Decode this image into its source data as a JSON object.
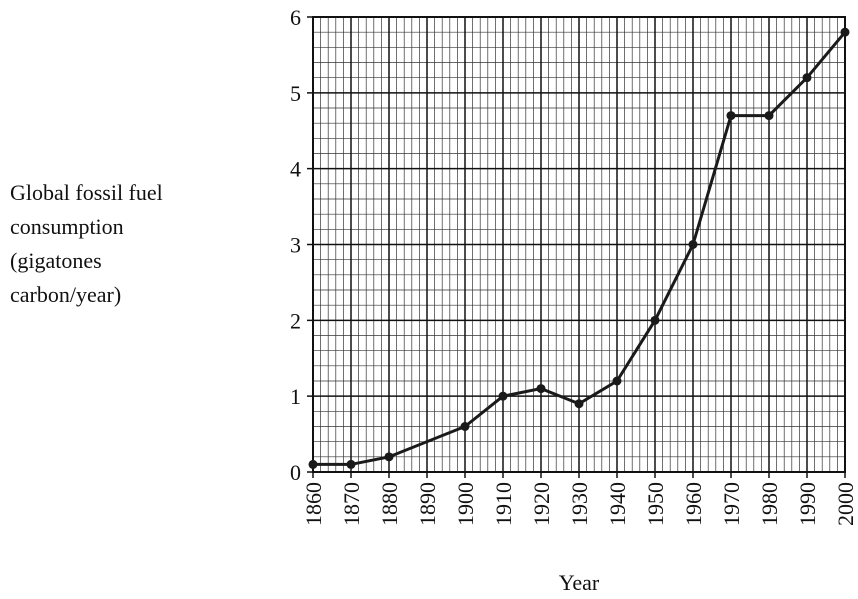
{
  "chart_data": {
    "type": "line",
    "x_label": "Year",
    "y_label": [
      "Global fossil fuel",
      "consumption",
      "(gigatones",
      "carbon/year)"
    ],
    "x": [
      1860,
      1870,
      1880,
      1900,
      1910,
      1920,
      1930,
      1940,
      1950,
      1960,
      1970,
      1980,
      1990,
      2000
    ],
    "series": [
      {
        "color": "#1a1a1a",
        "values": [
          0.1,
          0.1,
          0.2,
          0.6,
          1.0,
          1.1,
          0.9,
          1.2,
          2.0,
          3.0,
          4.7,
          4.7,
          5.2,
          5.8
        ]
      }
    ],
    "xlim": [
      1860,
      2000
    ],
    "xticks": [
      1860,
      1870,
      1880,
      1890,
      1900,
      1910,
      1920,
      1930,
      1940,
      1950,
      1960,
      1970,
      1980,
      1990,
      2000
    ],
    "ylim": [
      0,
      6
    ],
    "yticks": [
      0,
      1,
      2,
      3,
      4,
      5,
      6
    ],
    "grid": true
  }
}
